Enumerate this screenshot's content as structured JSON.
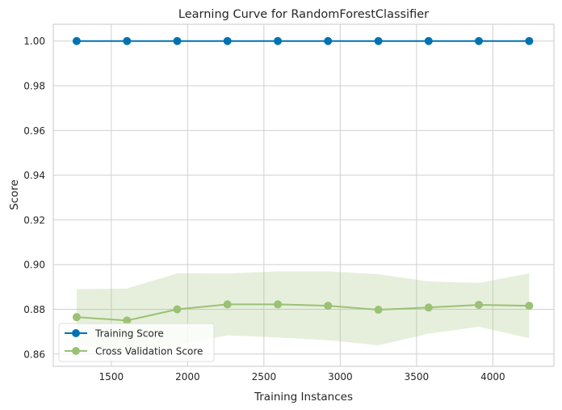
{
  "chart_data": {
    "type": "line",
    "title": "Learning Curve for RandomForestClassifier",
    "xlabel": "Training Instances",
    "ylabel": "Score",
    "xlim": [
      1120,
      4400
    ],
    "ylim": [
      0.8545,
      1.0075
    ],
    "xticks": [
      1500,
      2000,
      2500,
      3000,
      3500,
      4000
    ],
    "xtick_labels": [
      "1500",
      "2000",
      "2500",
      "3000",
      "3500",
      "4000"
    ],
    "yticks": [
      0.86,
      0.88,
      0.9,
      0.92,
      0.94,
      0.96,
      0.98,
      1.0
    ],
    "ytick_labels": [
      "0.86",
      "0.88",
      "0.90",
      "0.92",
      "0.94",
      "0.96",
      "0.98",
      "1.00"
    ],
    "grid": true,
    "legend_position": "lower-left",
    "x": [
      1273,
      1603,
      1932,
      2261,
      2591,
      2920,
      3250,
      3579,
      3908,
      4238
    ],
    "series": [
      {
        "name": "Training Score",
        "color": "#0072B2",
        "values": [
          1.0,
          1.0,
          1.0,
          1.0,
          1.0,
          1.0,
          1.0,
          1.0,
          1.0,
          1.0
        ]
      },
      {
        "name": "Cross Validation Score",
        "color": "#9BC175",
        "values": [
          0.8765,
          0.875,
          0.88,
          0.8822,
          0.8822,
          0.8816,
          0.8798,
          0.8808,
          0.882,
          0.8816
        ],
        "band_upper": [
          0.889,
          0.8893,
          0.8961,
          0.896,
          0.897,
          0.897,
          0.8957,
          0.8925,
          0.8918,
          0.8961
        ],
        "band_lower": [
          0.864,
          0.8607,
          0.8639,
          0.8684,
          0.8674,
          0.8662,
          0.8639,
          0.8691,
          0.8722,
          0.8671
        ]
      }
    ]
  }
}
